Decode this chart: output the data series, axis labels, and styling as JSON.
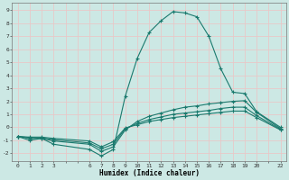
{
  "title": "",
  "xlabel": "Humidex (Indice chaleur)",
  "bg_color": "#cce8e4",
  "grid_color": "#e8c8c8",
  "line_color": "#1a7a6e",
  "xlim": [
    -0.5,
    22.5
  ],
  "ylim": [
    -2.6,
    9.6
  ],
  "xtick_vals": [
    0,
    1,
    2,
    3,
    6,
    7,
    8,
    9,
    10,
    11,
    12,
    13,
    14,
    15,
    16,
    17,
    18,
    19,
    20,
    22
  ],
  "ytick_vals": [
    -2,
    -1,
    0,
    1,
    2,
    3,
    4,
    5,
    6,
    7,
    8,
    9
  ],
  "series": [
    {
      "x": [
        0,
        1,
        2,
        3,
        6,
        7,
        8,
        9,
        10,
        11,
        12,
        13,
        14,
        15,
        16,
        17,
        18,
        19,
        20,
        22
      ],
      "y": [
        -0.7,
        -1.0,
        -0.85,
        -1.3,
        -1.7,
        -2.2,
        -1.7,
        2.4,
        5.3,
        7.3,
        8.2,
        8.9,
        8.8,
        8.5,
        7.0,
        4.5,
        2.7,
        2.6,
        1.2,
        0.0
      ]
    },
    {
      "x": [
        0,
        1,
        2,
        3,
        6,
        7,
        8,
        9,
        10,
        11,
        12,
        13,
        14,
        15,
        16,
        17,
        18,
        19,
        20,
        22
      ],
      "y": [
        -0.7,
        -0.85,
        -0.85,
        -1.05,
        -1.3,
        -1.85,
        -1.5,
        -0.2,
        0.45,
        0.85,
        1.1,
        1.35,
        1.55,
        1.65,
        1.8,
        1.9,
        2.0,
        2.05,
        1.15,
        -0.1
      ]
    },
    {
      "x": [
        0,
        1,
        2,
        3,
        6,
        7,
        8,
        9,
        10,
        11,
        12,
        13,
        14,
        15,
        16,
        17,
        18,
        19,
        20,
        22
      ],
      "y": [
        -0.7,
        -0.8,
        -0.8,
        -0.95,
        -1.2,
        -1.65,
        -1.3,
        -0.1,
        0.3,
        0.6,
        0.8,
        1.0,
        1.1,
        1.2,
        1.3,
        1.45,
        1.55,
        1.55,
        0.9,
        -0.15
      ]
    },
    {
      "x": [
        0,
        1,
        2,
        3,
        6,
        7,
        8,
        9,
        10,
        11,
        12,
        13,
        14,
        15,
        16,
        17,
        18,
        19,
        20,
        22
      ],
      "y": [
        -0.7,
        -0.75,
        -0.75,
        -0.85,
        -1.05,
        -1.5,
        -1.1,
        -0.05,
        0.2,
        0.45,
        0.6,
        0.75,
        0.85,
        0.95,
        1.05,
        1.15,
        1.25,
        1.25,
        0.75,
        -0.2
      ]
    }
  ]
}
